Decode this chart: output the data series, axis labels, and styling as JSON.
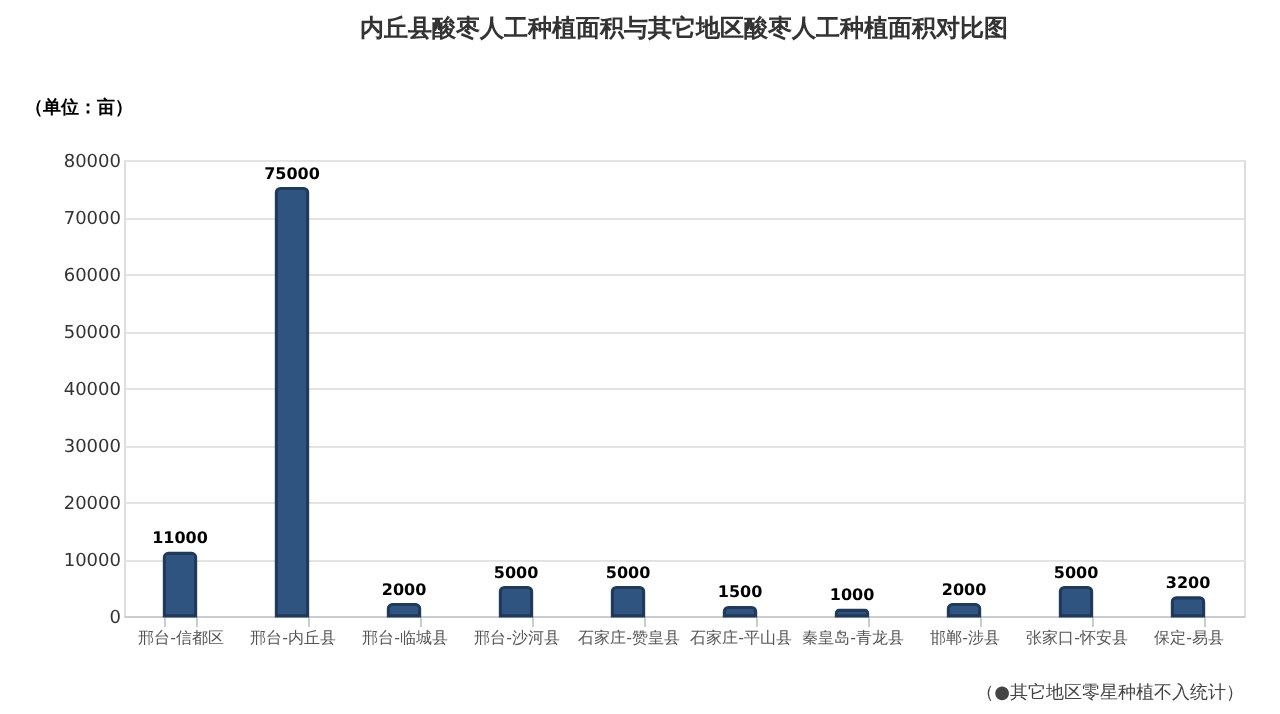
{
  "chart_data": {
    "type": "bar",
    "title": "内丘县酸枣人工种植面积与其它地区酸枣人工种植面积对比图",
    "ylabel": "（单位：亩）",
    "categories": [
      "邢台-信都区",
      "邢台-内丘县",
      "邢台-临城县",
      "邢台-沙河县",
      "石家庄-赞皇县",
      "石家庄-平山县",
      "秦皇岛-青龙县",
      "邯郸-涉县",
      "张家口-怀安县",
      "保定-易县"
    ],
    "values": [
      11000,
      75000,
      2000,
      5000,
      5000,
      1500,
      1000,
      2000,
      5000,
      3200
    ],
    "color": "#2f5480",
    "ylim": [
      0,
      80000
    ],
    "yticks": [
      0,
      10000,
      20000,
      30000,
      40000,
      50000,
      60000,
      70000,
      80000
    ],
    "grid": "y",
    "data_labels": true,
    "annotations": [
      "（●其它地区零星种植不入统计）"
    ]
  }
}
